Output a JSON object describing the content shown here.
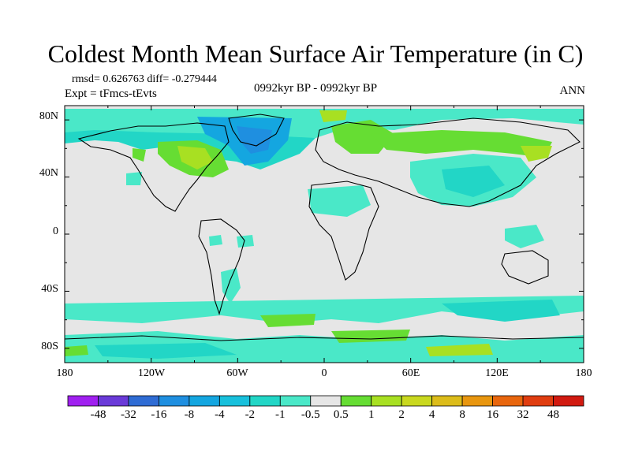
{
  "title": "Coldest Month Mean Surface Air Temperature (in C)",
  "stats": {
    "rmsd_text": "rmsd= 0.626763 diff= -0.279444",
    "expt_text": "Expt = tFmcs-tEvts"
  },
  "period_label": "0992kyr BP - 0992kyr BP",
  "season_label": "ANN",
  "axes": {
    "lat_labels": [
      "80N",
      "40N",
      "0",
      "40S",
      "80S"
    ],
    "lon_labels": [
      "180",
      "120W",
      "60W",
      "0",
      "60E",
      "120E",
      "180"
    ]
  },
  "colorbar": {
    "labels": [
      "-48",
      "-32",
      "-16",
      "-8",
      "-4",
      "-2",
      "-1",
      "-0.5",
      "0.5",
      "1",
      "2",
      "4",
      "8",
      "16",
      "32",
      "48"
    ],
    "colors": [
      "#a020f0",
      "#6a3ad8",
      "#2f6cd4",
      "#1f8fe0",
      "#14a6e0",
      "#18c0dc",
      "#22d6c6",
      "#4ae8c8",
      "#e6e6e6",
      "#66dd33",
      "#a8e022",
      "#c9d81f",
      "#dcbc1a",
      "#e8960f",
      "#e8660d",
      "#e03d10",
      "#d11a10"
    ]
  },
  "chart_data": {
    "type": "heatmap",
    "title": "Coldest Month Mean Surface Air Temperature (in C)",
    "subtitle": "0992kyr BP - 0992kyr BP",
    "xlim": [
      -180,
      180
    ],
    "ylim": [
      -90,
      90
    ],
    "x_ticks": [
      "180",
      "120W",
      "60W",
      "0",
      "60E",
      "120E",
      "180"
    ],
    "y_ticks": [
      "80N",
      "40N",
      "0",
      "40S",
      "80S"
    ],
    "levels": [
      -48,
      -32,
      -16,
      -8,
      -4,
      -2,
      -1,
      -0.5,
      0.5,
      1,
      2,
      4,
      8,
      16,
      32,
      48
    ],
    "rmsd": 0.626763,
    "diff": -0.279444
  }
}
